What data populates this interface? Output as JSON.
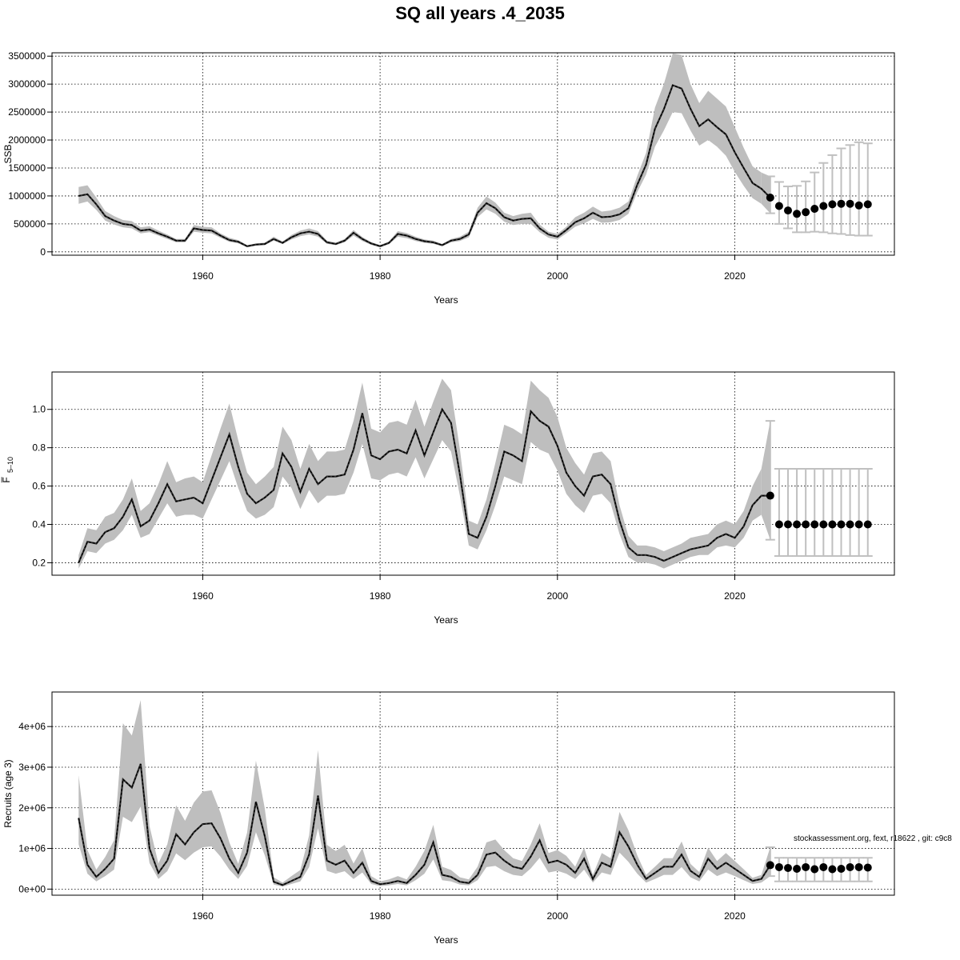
{
  "title": "SQ all years .4_2035",
  "footnote": "stockassessment.org, fext, r18622 , git: c9c8",
  "colors": {
    "band": "#bebebe",
    "line": "#000000",
    "forecast_point": "#000000",
    "forecast_bar": "#c0c0c0",
    "grid": "#000000"
  },
  "chart_data": [
    {
      "type": "line",
      "title": "",
      "xlabel": "Years",
      "ylabel": "SSB",
      "xlim": [
        1943,
        2038
      ],
      "ylim": [
        -60000,
        3560000
      ],
      "xticks": [
        1960,
        1980,
        2000,
        2020
      ],
      "xtick_labels": [
        "1960",
        "1980",
        "2000",
        "2020"
      ],
      "yticks": [
        0,
        500000,
        1000000,
        1500000,
        2000000,
        2500000,
        3000000,
        3500000
      ],
      "ytick_labels": [
        "0",
        "500000",
        "1000000",
        "1500000",
        "2000000",
        "2500000",
        "3000000",
        "3500000"
      ],
      "grid": true,
      "years": [
        1946,
        1947,
        1948,
        1949,
        1950,
        1951,
        1952,
        1953,
        1954,
        1955,
        1956,
        1957,
        1958,
        1959,
        1960,
        1961,
        1962,
        1963,
        1964,
        1965,
        1966,
        1967,
        1968,
        1969,
        1970,
        1971,
        1972,
        1973,
        1974,
        1975,
        1976,
        1977,
        1978,
        1979,
        1980,
        1981,
        1982,
        1983,
        1984,
        1985,
        1986,
        1987,
        1988,
        1989,
        1990,
        1991,
        1992,
        1993,
        1994,
        1995,
        1996,
        1997,
        1998,
        1999,
        2000,
        2001,
        2002,
        2003,
        2004,
        2005,
        2006,
        2007,
        2008,
        2009,
        2010,
        2011,
        2012,
        2013,
        2014,
        2015,
        2016,
        2017,
        2018,
        2019,
        2020,
        2021,
        2022,
        2023
      ],
      "estimate": [
        1000000,
        1030000,
        850000,
        640000,
        560000,
        500000,
        480000,
        380000,
        400000,
        330000,
        270000,
        200000,
        200000,
        420000,
        390000,
        380000,
        290000,
        210000,
        180000,
        100000,
        130000,
        140000,
        230000,
        160000,
        260000,
        330000,
        360000,
        320000,
        170000,
        140000,
        200000,
        340000,
        230000,
        150000,
        100000,
        160000,
        320000,
        290000,
        230000,
        190000,
        170000,
        120000,
        200000,
        230000,
        310000,
        700000,
        870000,
        780000,
        620000,
        560000,
        590000,
        600000,
        420000,
        310000,
        270000,
        390000,
        530000,
        600000,
        700000,
        620000,
        630000,
        670000,
        780000,
        1200000,
        1560000,
        2200000,
        2550000,
        2980000,
        2920000,
        2560000,
        2250000,
        2370000,
        2230000,
        2100000,
        1780000,
        1500000,
        1230000,
        1130000
      ],
      "lower": [
        860000,
        900000,
        750000,
        560000,
        490000,
        440000,
        420000,
        330000,
        350000,
        290000,
        230000,
        170000,
        170000,
        360000,
        340000,
        330000,
        250000,
        180000,
        150000,
        85000,
        110000,
        120000,
        200000,
        140000,
        220000,
        280000,
        310000,
        270000,
        145000,
        120000,
        170000,
        290000,
        195000,
        125000,
        85000,
        135000,
        270000,
        245000,
        195000,
        160000,
        145000,
        100000,
        170000,
        195000,
        260000,
        620000,
        760000,
        680000,
        540000,
        480000,
        500000,
        500000,
        350000,
        250000,
        220000,
        330000,
        450000,
        510000,
        590000,
        520000,
        530000,
        570000,
        680000,
        1070000,
        1380000,
        1880000,
        2170000,
        2500000,
        2480000,
        2170000,
        1900000,
        2000000,
        1880000,
        1720000,
        1430000,
        1180000,
        960000,
        860000
      ],
      "upper": [
        1160000,
        1190000,
        970000,
        730000,
        640000,
        570000,
        550000,
        440000,
        460000,
        380000,
        310000,
        230000,
        230000,
        480000,
        450000,
        440000,
        330000,
        250000,
        210000,
        120000,
        150000,
        165000,
        270000,
        185000,
        300000,
        380000,
        420000,
        370000,
        200000,
        165000,
        230000,
        390000,
        265000,
        175000,
        120000,
        185000,
        370000,
        335000,
        270000,
        220000,
        200000,
        140000,
        230000,
        270000,
        360000,
        790000,
        990000,
        880000,
        700000,
        640000,
        680000,
        700000,
        490000,
        360000,
        320000,
        450000,
        620000,
        700000,
        810000,
        720000,
        740000,
        790000,
        900000,
        1360000,
        1770000,
        2580000,
        3000000,
        3550000,
        3520000,
        3000000,
        2660000,
        2880000,
        2740000,
        2600000,
        2230000,
        1860000,
        1530000,
        1420000
      ],
      "forecast": {
        "years": [
          2024,
          2025,
          2026,
          2027,
          2028,
          2029,
          2030,
          2031,
          2032,
          2033,
          2034,
          2035
        ],
        "values": [
          970000,
          820000,
          740000,
          680000,
          710000,
          770000,
          820000,
          850000,
          860000,
          860000,
          830000,
          850000
        ],
        "lower": [
          690000,
          500000,
          420000,
          350000,
          350000,
          360000,
          350000,
          330000,
          320000,
          300000,
          290000,
          290000
        ],
        "upper": [
          1350000,
          1250000,
          1170000,
          1180000,
          1260000,
          1420000,
          1590000,
          1730000,
          1850000,
          1910000,
          1960000,
          1940000
        ]
      }
    },
    {
      "type": "line",
      "title": "",
      "xlabel": "Years",
      "ylabel": "F̅",
      "ylabel_sub": "5–10",
      "xlim": [
        1943,
        2038
      ],
      "ylim": [
        0.135,
        1.195
      ],
      "xticks": [
        1960,
        1980,
        2000,
        2020
      ],
      "xtick_labels": [
        "1960",
        "1980",
        "2000",
        "2020"
      ],
      "yticks": [
        0.2,
        0.4,
        0.6,
        0.8,
        1.0
      ],
      "ytick_labels": [
        "0.2",
        "0.4",
        "0.6",
        "0.8",
        "1.0"
      ],
      "grid": true,
      "years": [
        1946,
        1947,
        1948,
        1949,
        1950,
        1951,
        1952,
        1953,
        1954,
        1955,
        1956,
        1957,
        1958,
        1959,
        1960,
        1961,
        1962,
        1963,
        1964,
        1965,
        1966,
        1967,
        1968,
        1969,
        1970,
        1971,
        1972,
        1973,
        1974,
        1975,
        1976,
        1977,
        1978,
        1979,
        1980,
        1981,
        1982,
        1983,
        1984,
        1985,
        1986,
        1987,
        1988,
        1989,
        1990,
        1991,
        1992,
        1993,
        1994,
        1995,
        1996,
        1997,
        1998,
        1999,
        2000,
        2001,
        2002,
        2003,
        2004,
        2005,
        2006,
        2007,
        2008,
        2009,
        2010,
        2011,
        2012,
        2013,
        2014,
        2015,
        2016,
        2017,
        2018,
        2019,
        2020,
        2021,
        2022,
        2023
      ],
      "estimate": [
        0.2,
        0.31,
        0.3,
        0.36,
        0.38,
        0.44,
        0.53,
        0.39,
        0.42,
        0.51,
        0.61,
        0.52,
        0.53,
        0.54,
        0.51,
        0.63,
        0.75,
        0.87,
        0.7,
        0.56,
        0.51,
        0.54,
        0.58,
        0.77,
        0.7,
        0.57,
        0.69,
        0.61,
        0.65,
        0.65,
        0.66,
        0.79,
        0.98,
        0.76,
        0.74,
        0.78,
        0.79,
        0.77,
        0.89,
        0.76,
        0.88,
        1.0,
        0.93,
        0.66,
        0.35,
        0.33,
        0.44,
        0.6,
        0.78,
        0.76,
        0.73,
        0.99,
        0.94,
        0.91,
        0.81,
        0.67,
        0.6,
        0.55,
        0.65,
        0.66,
        0.61,
        0.42,
        0.28,
        0.24,
        0.24,
        0.23,
        0.21,
        0.23,
        0.25,
        0.27,
        0.28,
        0.29,
        0.33,
        0.35,
        0.33,
        0.39,
        0.5,
        0.55
      ],
      "lower": [
        0.17,
        0.26,
        0.25,
        0.3,
        0.32,
        0.37,
        0.45,
        0.33,
        0.35,
        0.43,
        0.51,
        0.44,
        0.45,
        0.45,
        0.43,
        0.53,
        0.63,
        0.73,
        0.59,
        0.47,
        0.43,
        0.45,
        0.49,
        0.65,
        0.59,
        0.48,
        0.58,
        0.51,
        0.55,
        0.55,
        0.56,
        0.67,
        0.82,
        0.64,
        0.63,
        0.66,
        0.67,
        0.65,
        0.75,
        0.64,
        0.74,
        0.84,
        0.78,
        0.55,
        0.29,
        0.27,
        0.37,
        0.5,
        0.65,
        0.63,
        0.61,
        0.83,
        0.79,
        0.77,
        0.68,
        0.56,
        0.5,
        0.46,
        0.55,
        0.56,
        0.51,
        0.35,
        0.23,
        0.2,
        0.2,
        0.19,
        0.17,
        0.19,
        0.21,
        0.23,
        0.24,
        0.24,
        0.28,
        0.29,
        0.28,
        0.33,
        0.42,
        0.45
      ],
      "upper": [
        0.24,
        0.38,
        0.37,
        0.44,
        0.46,
        0.53,
        0.64,
        0.47,
        0.51,
        0.61,
        0.73,
        0.62,
        0.64,
        0.65,
        0.62,
        0.76,
        0.9,
        1.03,
        0.84,
        0.67,
        0.61,
        0.65,
        0.7,
        0.91,
        0.84,
        0.69,
        0.82,
        0.73,
        0.78,
        0.78,
        0.79,
        0.94,
        1.14,
        0.9,
        0.88,
        0.93,
        0.94,
        0.92,
        1.05,
        0.91,
        1.04,
        1.16,
        1.1,
        0.79,
        0.42,
        0.4,
        0.53,
        0.72,
        0.92,
        0.9,
        0.87,
        1.15,
        1.1,
        1.06,
        0.96,
        0.8,
        0.72,
        0.66,
        0.77,
        0.78,
        0.73,
        0.5,
        0.34,
        0.29,
        0.29,
        0.28,
        0.26,
        0.28,
        0.3,
        0.33,
        0.34,
        0.35,
        0.4,
        0.42,
        0.4,
        0.47,
        0.6,
        0.69
      ],
      "forecast": {
        "years": [
          2024,
          2025,
          2026,
          2027,
          2028,
          2029,
          2030,
          2031,
          2032,
          2033,
          2034,
          2035
        ],
        "values": [
          0.55,
          0.4,
          0.4,
          0.4,
          0.4,
          0.4,
          0.4,
          0.4,
          0.4,
          0.4,
          0.4,
          0.4
        ],
        "lower": [
          0.32,
          0.235,
          0.235,
          0.235,
          0.235,
          0.235,
          0.235,
          0.235,
          0.235,
          0.235,
          0.235,
          0.235
        ],
        "upper": [
          0.94,
          0.69,
          0.69,
          0.69,
          0.69,
          0.69,
          0.69,
          0.69,
          0.69,
          0.69,
          0.69,
          0.69
        ]
      }
    },
    {
      "type": "line",
      "title": "",
      "xlabel": "Years",
      "ylabel": "Recruits (age 3)",
      "xlim": [
        1943,
        2038
      ],
      "ylim": [
        -150000,
        4850000
      ],
      "xticks": [
        1960,
        1980,
        2000,
        2020
      ],
      "xtick_labels": [
        "1960",
        "1980",
        "2000",
        "2020"
      ],
      "yticks": [
        0,
        1000000,
        2000000,
        3000000,
        4000000
      ],
      "ytick_labels": [
        "0e+00",
        "1e+06",
        "2e+06",
        "3e+06",
        "4e+06"
      ],
      "grid": true,
      "years": [
        1946,
        1947,
        1948,
        1949,
        1950,
        1951,
        1952,
        1953,
        1954,
        1955,
        1956,
        1957,
        1958,
        1959,
        1960,
        1961,
        1962,
        1963,
        1964,
        1965,
        1966,
        1967,
        1968,
        1969,
        1970,
        1971,
        1972,
        1973,
        1974,
        1975,
        1976,
        1977,
        1978,
        1979,
        1980,
        1981,
        1982,
        1983,
        1984,
        1985,
        1986,
        1987,
        1988,
        1989,
        1990,
        1991,
        1992,
        1993,
        1994,
        1995,
        1996,
        1997,
        1998,
        1999,
        2000,
        2001,
        2002,
        2003,
        2004,
        2005,
        2006,
        2007,
        2008,
        2009,
        2010,
        2011,
        2012,
        2013,
        2014,
        2015,
        2016,
        2017,
        2018,
        2019,
        2020,
        2021,
        2022,
        2023
      ],
      "estimate": [
        1750000,
        600000,
        300000,
        500000,
        750000,
        2700000,
        2500000,
        3080000,
        1000000,
        400000,
        700000,
        1350000,
        1100000,
        1400000,
        1600000,
        1620000,
        1250000,
        750000,
        400000,
        900000,
        2150000,
        1300000,
        180000,
        100000,
        200000,
        300000,
        850000,
        2300000,
        700000,
        600000,
        700000,
        400000,
        650000,
        200000,
        120000,
        150000,
        200000,
        150000,
        350000,
        600000,
        1150000,
        350000,
        300000,
        180000,
        150000,
        350000,
        850000,
        900000,
        700000,
        550000,
        500000,
        800000,
        1200000,
        650000,
        700000,
        600000,
        400000,
        750000,
        250000,
        650000,
        550000,
        1400000,
        1050000,
        600000,
        250000,
        400000,
        550000,
        550000,
        850000,
        450000,
        300000,
        750000,
        500000,
        650000,
        500000,
        350000,
        200000,
        250000
      ],
      "lower": [
        1100000,
        380000,
        190000,
        320000,
        480000,
        1780000,
        1650000,
        2030000,
        640000,
        250000,
        440000,
        880000,
        710000,
        900000,
        1030000,
        1050000,
        800000,
        480000,
        250000,
        570000,
        1400000,
        830000,
        110000,
        60000,
        125000,
        190000,
        540000,
        1500000,
        450000,
        380000,
        440000,
        250000,
        410000,
        125000,
        75000,
        95000,
        125000,
        95000,
        220000,
        380000,
        730000,
        220000,
        190000,
        110000,
        95000,
        220000,
        540000,
        570000,
        440000,
        350000,
        320000,
        510000,
        770000,
        410000,
        450000,
        380000,
        250000,
        480000,
        160000,
        410000,
        350000,
        900000,
        670000,
        380000,
        160000,
        250000,
        350000,
        350000,
        540000,
        290000,
        190000,
        480000,
        320000,
        410000,
        320000,
        220000,
        125000,
        160000
      ],
      "upper": [
        2800000,
        960000,
        480000,
        790000,
        1200000,
        4080000,
        3780000,
        4650000,
        1550000,
        630000,
        1100000,
        2060000,
        1680000,
        2130000,
        2400000,
        2430000,
        1880000,
        1150000,
        620000,
        1390000,
        3160000,
        1980000,
        290000,
        160000,
        320000,
        470000,
        1320000,
        3420000,
        1090000,
        940000,
        1090000,
        630000,
        1010000,
        320000,
        190000,
        240000,
        320000,
        240000,
        550000,
        940000,
        1580000,
        550000,
        470000,
        290000,
        240000,
        550000,
        1150000,
        1220000,
        960000,
        760000,
        690000,
        1100000,
        1620000,
        890000,
        960000,
        820000,
        550000,
        1020000,
        350000,
        890000,
        760000,
        1900000,
        1450000,
        830000,
        350000,
        550000,
        760000,
        760000,
        1170000,
        620000,
        420000,
        1020000,
        690000,
        890000,
        690000,
        490000,
        280000,
        350000
      ],
      "forecast": {
        "years": [
          2024,
          2025,
          2026,
          2027,
          2028,
          2029,
          2030,
          2031,
          2032,
          2033,
          2034,
          2035
        ],
        "values": [
          590000,
          540000,
          520000,
          500000,
          540000,
          490000,
          540000,
          490000,
          500000,
          540000,
          540000,
          530000
        ],
        "lower": [
          320000,
          190000,
          190000,
          190000,
          190000,
          190000,
          190000,
          190000,
          190000,
          190000,
          190000,
          190000
        ],
        "upper": [
          1030000,
          770000,
          770000,
          770000,
          770000,
          770000,
          770000,
          770000,
          770000,
          770000,
          770000,
          770000
        ]
      }
    }
  ]
}
